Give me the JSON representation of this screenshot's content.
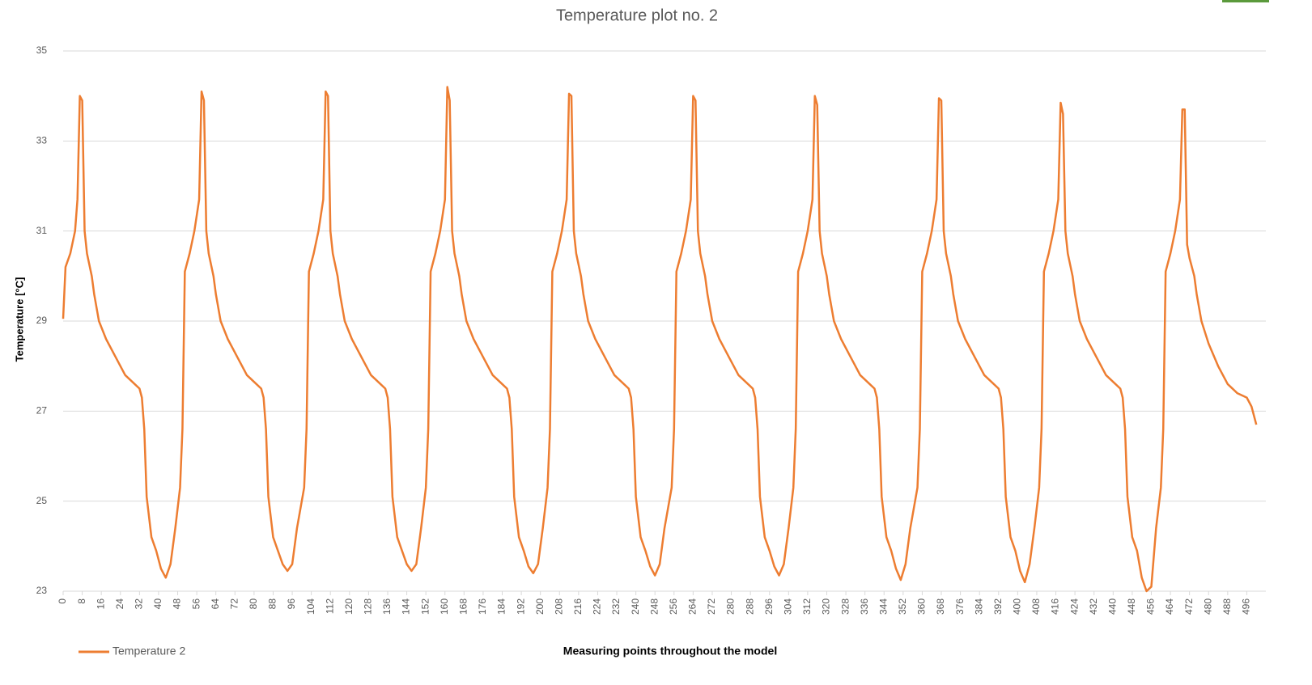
{
  "chart_data": {
    "type": "line",
    "title": "Temperature plot no. 2",
    "x_label": "Measuring points throughout the model",
    "y_label": "Temperature [°C]",
    "xlim": [
      0,
      504
    ],
    "ylim": [
      23,
      35
    ],
    "yticks": [
      23,
      25,
      27,
      29,
      31,
      33,
      35
    ],
    "xticks": [
      0,
      8,
      16,
      24,
      32,
      40,
      48,
      56,
      64,
      72,
      80,
      88,
      96,
      104,
      112,
      120,
      128,
      136,
      144,
      152,
      160,
      168,
      176,
      184,
      192,
      200,
      208,
      216,
      224,
      232,
      240,
      248,
      256,
      264,
      272,
      280,
      288,
      296,
      304,
      312,
      320,
      328,
      336,
      344,
      352,
      360,
      368,
      376,
      384,
      392,
      400,
      408,
      416,
      424,
      432,
      440,
      448,
      456,
      464,
      472,
      480,
      488,
      496
    ],
    "grid": true,
    "legend": "bottom-left",
    "x": [
      0,
      1,
      3,
      5,
      6,
      7,
      8,
      9,
      10,
      12,
      13,
      15,
      18,
      22,
      26,
      30,
      32,
      33,
      34,
      35,
      37,
      39,
      41,
      43,
      45,
      47,
      49,
      50,
      51,
      53,
      55,
      57,
      58,
      59,
      60,
      61,
      63,
      64,
      66,
      69,
      73,
      77,
      81,
      83,
      84,
      85,
      86,
      88,
      90,
      92,
      94,
      96,
      98,
      101,
      102,
      103,
      105,
      107,
      109,
      110,
      111,
      112,
      113,
      115,
      116,
      118,
      121,
      125,
      129,
      133,
      135,
      136,
      137,
      138,
      140,
      142,
      144,
      146,
      148,
      150,
      152,
      153,
      154,
      156,
      158,
      160,
      161,
      162,
      163,
      164,
      166,
      167,
      169,
      172,
      176,
      180,
      184,
      186,
      187,
      188,
      189,
      191,
      193,
      195,
      197,
      199,
      201,
      203,
      204,
      205,
      207,
      209,
      211,
      212,
      213,
      214,
      215,
      217,
      218,
      220,
      223,
      227,
      231,
      235,
      237,
      238,
      239,
      240,
      242,
      244,
      246,
      248,
      250,
      252,
      255,
      256,
      257,
      259,
      261,
      263,
      264,
      265,
      266,
      267,
      269,
      270,
      272,
      275,
      279,
      283,
      287,
      289,
      290,
      291,
      292,
      294,
      296,
      298,
      300,
      302,
      304,
      306,
      307,
      308,
      310,
      312,
      314,
      315,
      316,
      317,
      318,
      320,
      321,
      323,
      326,
      330,
      334,
      338,
      340,
      341,
      342,
      343,
      345,
      347,
      349,
      351,
      353,
      355,
      358,
      359,
      360,
      362,
      364,
      366,
      367,
      368,
      369,
      370,
      372,
      373,
      375,
      378,
      382,
      386,
      390,
      392,
      393,
      394,
      395,
      397,
      399,
      401,
      403,
      405,
      407,
      409,
      410,
      411,
      413,
      415,
      417,
      418,
      419,
      420,
      421,
      423,
      424,
      426,
      429,
      433,
      437,
      441,
      443,
      444,
      445,
      446,
      448,
      450,
      452,
      454,
      456,
      458,
      460,
      461,
      462,
      464,
      466,
      468,
      469,
      470,
      471,
      472,
      474,
      475,
      477,
      480,
      484,
      488,
      492,
      496,
      498,
      500
    ],
    "series": [
      {
        "name": "Temperature 2",
        "color": "#ed7d31",
        "values": [
          29.05,
          30.2,
          30.5,
          31.0,
          31.7,
          34.0,
          33.9,
          31.0,
          30.5,
          30.0,
          29.6,
          29.0,
          28.6,
          28.2,
          27.8,
          27.6,
          27.5,
          27.3,
          26.6,
          25.1,
          24.2,
          23.9,
          23.5,
          23.3,
          23.6,
          24.4,
          25.3,
          26.6,
          30.1,
          30.5,
          31.0,
          31.7,
          34.1,
          33.9,
          31.0,
          30.5,
          30.0,
          29.6,
          29.0,
          28.6,
          28.2,
          27.8,
          27.6,
          27.5,
          27.3,
          26.6,
          25.1,
          24.2,
          23.9,
          23.6,
          23.45,
          23.6,
          24.4,
          25.3,
          26.6,
          30.1,
          30.5,
          31.0,
          31.7,
          34.1,
          34.0,
          31.0,
          30.5,
          30.0,
          29.6,
          29.0,
          28.6,
          28.2,
          27.8,
          27.6,
          27.5,
          27.3,
          26.6,
          25.1,
          24.2,
          23.9,
          23.6,
          23.45,
          23.6,
          24.4,
          25.3,
          26.6,
          30.1,
          30.5,
          31.0,
          31.7,
          34.2,
          33.9,
          31.0,
          30.5,
          30.0,
          29.6,
          29.0,
          28.6,
          28.2,
          27.8,
          27.6,
          27.5,
          27.3,
          26.6,
          25.1,
          24.2,
          23.9,
          23.55,
          23.4,
          23.6,
          24.4,
          25.3,
          26.6,
          30.1,
          30.5,
          31.0,
          31.7,
          34.05,
          34.0,
          31.0,
          30.5,
          30.0,
          29.6,
          29.0,
          28.6,
          28.2,
          27.8,
          27.6,
          27.5,
          27.3,
          26.6,
          25.1,
          24.2,
          23.9,
          23.55,
          23.35,
          23.6,
          24.4,
          25.3,
          26.6,
          30.1,
          30.5,
          31.0,
          31.7,
          34.0,
          33.9,
          31.0,
          30.5,
          30.0,
          29.6,
          29.0,
          28.6,
          28.2,
          27.8,
          27.6,
          27.5,
          27.3,
          26.6,
          25.1,
          24.2,
          23.9,
          23.55,
          23.35,
          23.6,
          24.4,
          25.3,
          26.6,
          30.1,
          30.5,
          31.0,
          31.7,
          34.0,
          33.8,
          31.0,
          30.5,
          30.0,
          29.6,
          29.0,
          28.6,
          28.2,
          27.8,
          27.6,
          27.5,
          27.3,
          26.6,
          25.1,
          24.2,
          23.9,
          23.5,
          23.25,
          23.6,
          24.4,
          25.3,
          26.6,
          30.1,
          30.5,
          31.0,
          31.7,
          33.95,
          33.9,
          31.0,
          30.5,
          30.0,
          29.6,
          29.0,
          28.6,
          28.2,
          27.8,
          27.6,
          27.5,
          27.3,
          26.6,
          25.1,
          24.2,
          23.9,
          23.45,
          23.2,
          23.6,
          24.4,
          25.3,
          26.6,
          30.1,
          30.5,
          31.0,
          31.7,
          33.85,
          33.6,
          31.0,
          30.5,
          30.0,
          29.6,
          29.0,
          28.6,
          28.2,
          27.8,
          27.6,
          27.5,
          27.3,
          26.6,
          25.1,
          24.2,
          23.9,
          23.3,
          23.0,
          23.1,
          24.4,
          25.3,
          26.6,
          30.1,
          30.5,
          31.0,
          31.7,
          33.7,
          33.7,
          30.7,
          30.4,
          30.0,
          29.6,
          29.0,
          28.5,
          28.0,
          27.6,
          27.4,
          27.3,
          27.1,
          26.7
        ]
      }
    ]
  }
}
